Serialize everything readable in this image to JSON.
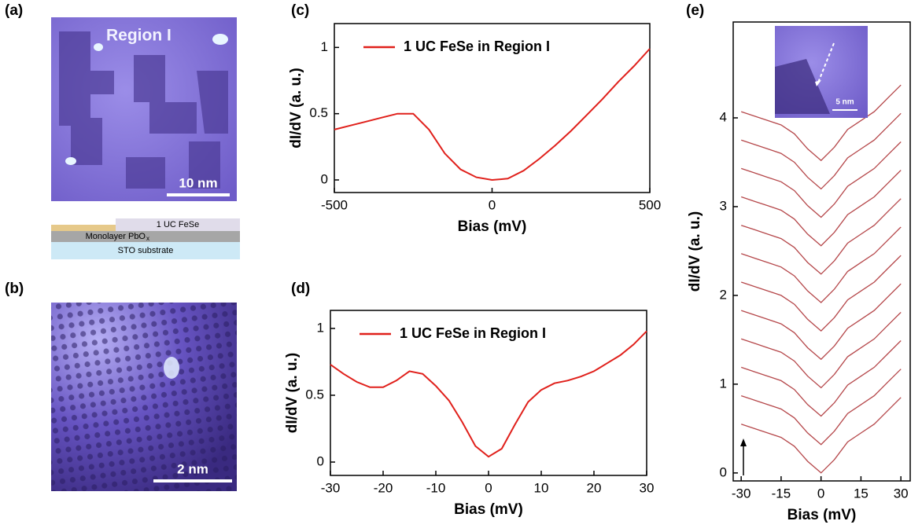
{
  "panel_labels": [
    "(a)",
    "(b)",
    "(c)",
    "(d)",
    "(e)"
  ],
  "images": {
    "a_region": "Region I",
    "a_scale": "10 nm",
    "b_scale": "2 nm",
    "e_scale": "5 nm"
  },
  "layers": {
    "top": "1 UC FeSe",
    "middle": "Monolayer PbO",
    "middle_sub": "x",
    "bottom": "STO substrate"
  },
  "chart_data": [
    {
      "type": "line",
      "x_label": "Bias (mV)",
      "y_label": "dI/dV (a. u.)",
      "x": [
        -500,
        -450,
        -400,
        -350,
        -300,
        -250,
        -200,
        -150,
        -100,
        -50,
        0,
        50,
        100,
        150,
        200,
        250,
        300,
        350,
        400,
        450,
        500
      ],
      "series": [
        {
          "name": "1 UC FeSe in Region I",
          "color": "#e0201b",
          "values": [
            0.38,
            0.41,
            0.44,
            0.47,
            0.5,
            0.5,
            0.38,
            0.2,
            0.08,
            0.02,
            0,
            0.01,
            0.07,
            0.16,
            0.26,
            0.37,
            0.49,
            0.61,
            0.74,
            0.86,
            0.99
          ]
        }
      ],
      "xlim": [
        -500,
        500
      ],
      "ylim": [
        -0.095,
        1.18
      ],
      "xticks": [
        -500,
        0,
        500
      ],
      "yticks": [
        0,
        0.5,
        1
      ]
    },
    {
      "type": "line",
      "x_label": "Bias (mV)",
      "y_label": "dI/dV (a. u.)",
      "x": [
        -30,
        -27.5,
        -25,
        -22.5,
        -20,
        -17.5,
        -15,
        -12.5,
        -10,
        -7.5,
        -5,
        -2.5,
        0,
        2.5,
        5,
        7.5,
        10,
        12.5,
        15,
        17.5,
        20,
        22.5,
        25,
        27.5,
        30
      ],
      "series": [
        {
          "name": "1 UC FeSe in Region I",
          "color": "#e0201b",
          "values": [
            0.73,
            0.66,
            0.6,
            0.56,
            0.56,
            0.61,
            0.68,
            0.66,
            0.57,
            0.46,
            0.3,
            0.12,
            0.04,
            0.1,
            0.28,
            0.45,
            0.54,
            0.59,
            0.61,
            0.64,
            0.68,
            0.74,
            0.8,
            0.88,
            0.98
          ]
        }
      ],
      "xlim": [
        -30,
        30
      ],
      "ylim": [
        -0.1,
        1.135
      ],
      "xticks": [
        -30,
        -20,
        -10,
        0,
        10,
        20,
        30
      ],
      "yticks": [
        0,
        0.5,
        1
      ]
    },
    {
      "type": "line",
      "x_label": "Bias (mV)",
      "y_label": "dI/dV (a. u.)",
      "color": "#b5474a",
      "x": [
        -30,
        -25,
        -20,
        -15,
        -10,
        -5,
        0,
        5,
        10,
        15,
        20,
        25,
        30
      ],
      "series": [
        {
          "values": [
            0.55,
            0.5,
            0.45,
            0.4,
            0.3,
            0.13,
            0,
            0.15,
            0.35,
            0.45,
            0.55,
            0.7,
            0.85
          ]
        },
        {
          "values": [
            0.87,
            0.82,
            0.77,
            0.72,
            0.62,
            0.45,
            0.32,
            0.47,
            0.67,
            0.77,
            0.87,
            1.02,
            1.17
          ]
        },
        {
          "values": [
            1.19,
            1.14,
            1.09,
            1.04,
            0.94,
            0.77,
            0.64,
            0.79,
            0.99,
            1.09,
            1.19,
            1.34,
            1.49
          ]
        },
        {
          "values": [
            1.51,
            1.46,
            1.41,
            1.36,
            1.26,
            1.09,
            0.96,
            1.11,
            1.31,
            1.41,
            1.51,
            1.66,
            1.81
          ]
        },
        {
          "values": [
            1.83,
            1.78,
            1.73,
            1.68,
            1.58,
            1.41,
            1.28,
            1.43,
            1.63,
            1.73,
            1.83,
            1.98,
            2.13
          ]
        },
        {
          "values": [
            2.15,
            2.1,
            2.05,
            2,
            1.9,
            1.73,
            1.6,
            1.75,
            1.95,
            2.05,
            2.15,
            2.3,
            2.45
          ]
        },
        {
          "values": [
            2.47,
            2.42,
            2.37,
            2.32,
            2.22,
            2.05,
            1.92,
            2.07,
            2.27,
            2.37,
            2.47,
            2.62,
            2.77
          ]
        },
        {
          "values": [
            2.79,
            2.74,
            2.69,
            2.64,
            2.54,
            2.37,
            2.24,
            2.39,
            2.59,
            2.69,
            2.79,
            2.94,
            3.09
          ]
        },
        {
          "values": [
            3.11,
            3.06,
            3.01,
            2.96,
            2.86,
            2.69,
            2.56,
            2.71,
            2.91,
            3.01,
            3.11,
            3.26,
            3.41
          ]
        },
        {
          "values": [
            3.43,
            3.38,
            3.33,
            3.28,
            3.18,
            3.01,
            2.88,
            3.03,
            3.23,
            3.33,
            3.43,
            3.58,
            3.73
          ]
        },
        {
          "values": [
            3.75,
            3.7,
            3.65,
            3.6,
            3.5,
            3.33,
            3.2,
            3.35,
            3.55,
            3.65,
            3.75,
            3.9,
            4.05
          ]
        },
        {
          "values": [
            4.07,
            4.02,
            3.97,
            3.92,
            3.82,
            3.65,
            3.52,
            3.67,
            3.87,
            3.97,
            4.07,
            4.22,
            4.37
          ]
        }
      ],
      "xlim": [
        -33,
        33.5
      ],
      "ylim": [
        -0.09,
        5.08
      ],
      "xticks": [
        -30,
        -15,
        0,
        15,
        30
      ],
      "yticks": [
        0,
        1,
        2,
        3,
        4
      ]
    }
  ]
}
